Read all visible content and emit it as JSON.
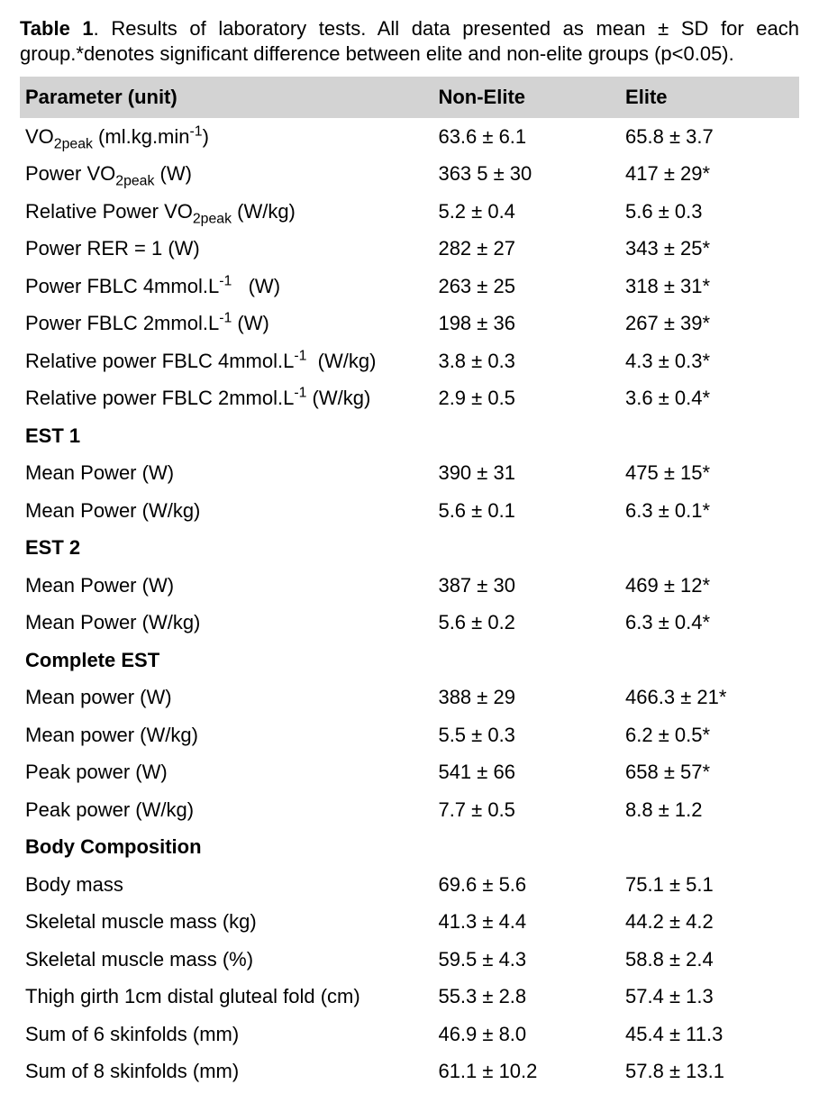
{
  "caption": {
    "label": "Table 1",
    "text": ". Results of laboratory tests.  All data presented as mean ± SD for each group.*denotes significant difference between elite and non-elite groups (p<0.05)."
  },
  "table": {
    "type": "table",
    "background_color": "#ffffff",
    "header_bg": "#d3d3d3",
    "text_color": "#000000",
    "font_family": "Arial",
    "font_size_pt": 16,
    "column_widths_pct": [
      53,
      24,
      23
    ],
    "columns": [
      "Parameter (unit)",
      "Non-Elite",
      "Elite"
    ],
    "rows": [
      {
        "kind": "data",
        "p": "VO<sub>2peak</sub> (ml.kg.min<sup>-1</sup>)",
        "ne": "63.6 ± 6.1",
        "el": "65.8 ± 3.7"
      },
      {
        "kind": "data",
        "p": "Power VO<sub>2peak</sub> (W)",
        "ne": "363 5 ± 30",
        "el": "417 ± 29*"
      },
      {
        "kind": "data",
        "p": "Relative Power VO<sub>2peak</sub> (W/kg)",
        "ne": "5.2 ± 0.4",
        "el": "5.6 ± 0.3"
      },
      {
        "kind": "data",
        "p": "Power RER = 1 (W)",
        "ne": "282 ± 27",
        "el": "343 ± 25*"
      },
      {
        "kind": "data",
        "p": "Power FBLC 4mmol.L<sup>-1</sup>&nbsp;&nbsp; (W)",
        "ne": "263 ± 25",
        "el": "318 ± 31*"
      },
      {
        "kind": "data",
        "p": "Power FBLC 2mmol.L<sup>-1</sup> (W)",
        "ne": "198 ± 36",
        "el": "267 ± 39*"
      },
      {
        "kind": "data",
        "p": "Relative power FBLC 4mmol.L<sup>-1</sup>&nbsp; (W/kg)",
        "ne": "3.8 ± 0.3",
        "el": "4.3 ± 0.3*"
      },
      {
        "kind": "data",
        "p": "Relative power FBLC 2mmol.L<sup>-1</sup> (W/kg)",
        "ne": "2.9 ± 0.5",
        "el": "3.6 ± 0.4*"
      },
      {
        "kind": "section",
        "p": "EST 1"
      },
      {
        "kind": "data",
        "p": "Mean Power (W)",
        "ne": "390 ± 31",
        "el": "475 ± 15*"
      },
      {
        "kind": "data",
        "p": "Mean Power (W/kg)",
        "ne": "5.6 ± 0.1",
        "el": "6.3 ± 0.1*"
      },
      {
        "kind": "section",
        "p": "EST 2"
      },
      {
        "kind": "data",
        "p": "Mean Power (W)",
        "ne": "387 ± 30",
        "el": "469 ± 12*"
      },
      {
        "kind": "data",
        "p": "Mean Power (W/kg)",
        "ne": "5.6 ± 0.2",
        "el": "6.3 ± 0.4*"
      },
      {
        "kind": "section",
        "p": "Complete EST"
      },
      {
        "kind": "data",
        "p": "Mean power (W)",
        "ne": "388 ± 29",
        "el": "466.3 ± 21*"
      },
      {
        "kind": "data",
        "p": "Mean power (W/kg)",
        "ne": "5.5 ± 0.3",
        "el": "6.2 ± 0.5*"
      },
      {
        "kind": "data",
        "p": "Peak power (W)",
        "ne": "541 ± 66",
        "el": "658 ± 57*"
      },
      {
        "kind": "data",
        "p": "Peak power (W/kg)",
        "ne": "7.7 ± 0.5",
        "el": "8.8 ± 1.2"
      },
      {
        "kind": "section",
        "p": "Body Composition"
      },
      {
        "kind": "data",
        "p": "Body mass",
        "ne": "69.6 ± 5.6",
        "el": "75.1 ± 5.1"
      },
      {
        "kind": "data",
        "p": "Skeletal muscle mass (kg)",
        "ne": "41.3 ± 4.4",
        "el": "44.2 ± 4.2"
      },
      {
        "kind": "data",
        "p": "Skeletal muscle mass (%)",
        "ne": "59.5 ± 4.3",
        "el": "58.8 ± 2.4"
      },
      {
        "kind": "data",
        "p": "Thigh girth 1cm distal gluteal fold (cm)",
        "ne": "55.3 ± 2.8",
        "el": "57.4 ± 1.3"
      },
      {
        "kind": "data",
        "p": "Sum of 6 skinfolds (mm)",
        "ne": "46.9 ± 8.0",
        "el": "45.4 ± 11.3"
      },
      {
        "kind": "data",
        "p": "Sum of 8 skinfolds (mm)",
        "ne": "61.1 ± 10.2",
        "el": "57.8 ± 13.1"
      }
    ]
  }
}
